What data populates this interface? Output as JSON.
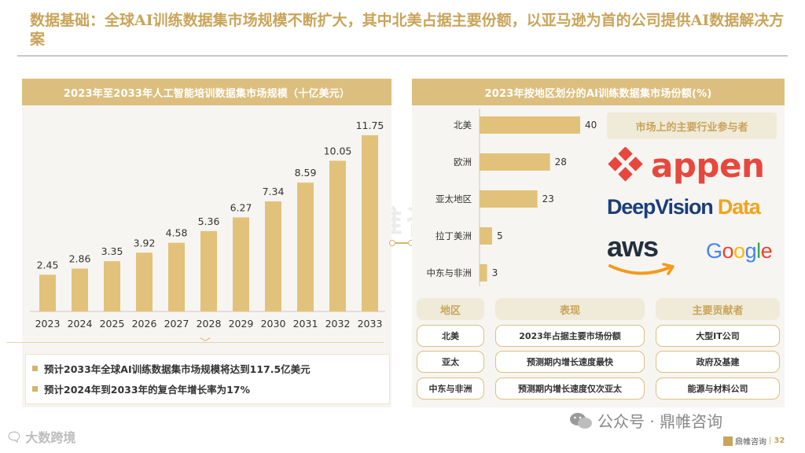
{
  "title": "数据基础：全球AI训练数据集市场规模不断扩大，其中北美占据主要份额，以亚马逊为首的公司提供AI数据解决方案",
  "left_panel": {
    "header": "2023年至2033年人工智能培训数据集市场规模（十亿美元）",
    "notes": [
      "预计2033年全球AI训练数据集市场规模将达到117.5亿美元",
      "预计2024年到2033年的复合年增长率为17%"
    ]
  },
  "right_panel": {
    "header": "2023年按地区划分的AI训练数据集市场份额(%)",
    "players_label": "市场上的主要行业参与者",
    "logos": {
      "appen": "appen",
      "deepvision_a": "DeepVision",
      "deepvision_b": " Data",
      "aws": "aws",
      "google": "Google"
    },
    "table": {
      "headers": [
        "地区",
        "表现",
        "主要贡献者"
      ],
      "rows": [
        [
          "北美",
          "2023年占据主要市场份额",
          "大型IT公司"
        ],
        [
          "亚太",
          "预测期内增长速度最快",
          "政府及基建"
        ],
        [
          "中东与非洲",
          "预测期内增长速度仅次亚太",
          "能源与材料公司"
        ]
      ]
    }
  },
  "chart_data": [
    {
      "type": "bar",
      "title": "2023年至2033年人工智能培训数据集市场规模（十亿美元）",
      "categories": [
        "2023",
        "2024",
        "2025",
        "2026",
        "2027",
        "2028",
        "2029",
        "2030",
        "2031",
        "2032",
        "2033"
      ],
      "values": [
        2.45,
        2.86,
        3.35,
        3.92,
        4.58,
        5.36,
        6.27,
        7.34,
        8.59,
        10.05,
        11.75
      ],
      "value_labels": [
        "2.45",
        "2.86",
        "3.35",
        "3.92",
        "4.58",
        "5.36",
        "6.27",
        "7.34",
        "8.59",
        "10.05",
        "11.75"
      ],
      "ylim": [
        0,
        11.75
      ],
      "color": "#e2c27a"
    },
    {
      "type": "bar",
      "orientation": "horizontal",
      "title": "2023年按地区划分的AI训练数据集市场份额(%)",
      "categories": [
        "北美",
        "欧洲",
        "亚太地区",
        "拉丁美洲",
        "中东与非洲"
      ],
      "values": [
        40,
        28,
        23,
        5,
        3
      ],
      "value_labels": [
        "40",
        "28",
        "23",
        "5",
        "3"
      ],
      "xlim": [
        0,
        40
      ],
      "color": "#e2c27a"
    }
  ],
  "footer": {
    "left_brand": "大数跨境",
    "wechat": "公众号 · 鼎帷咨询",
    "right_brand": "鼎帷咨询",
    "separator": "|",
    "page": "32"
  },
  "watermark": "鼎帷咨询"
}
